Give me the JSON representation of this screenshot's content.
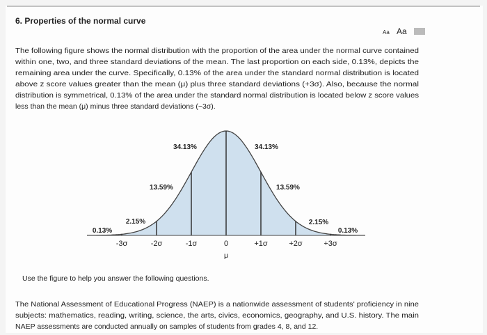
{
  "header": {
    "title": "6. Properties of the normal curve",
    "font_controls": [
      "Aa",
      "Aa"
    ]
  },
  "intro": {
    "lines": [
      "The following figure shows the normal distribution with the proportion of the area under the normal curve contained",
      "within one, two, and three standard deviations of the mean. The last proportion on each side, 0.13%, depicts the",
      "remaining area under the curve. Specifically, 0.13% of the area under the standard normal distribution is located",
      "above z score values greater than the mean (μ) plus three standard deviations (+3σ). Also, because the normal",
      "distribution is symmetrical, 0.13% of the area under the standard normal distribution is located below z score values",
      "less than the mean (μ) minus three standard deviations (−3σ)."
    ]
  },
  "figure": {
    "area_labels": [
      "0.13%",
      "2.15%",
      "13.59%",
      "34.13%",
      "34.13%",
      "13.59%",
      "2.15%",
      "0.13%"
    ],
    "axis_labels": [
      "-3σ",
      "-2σ",
      "-1σ",
      "0",
      "+1σ",
      "+2σ",
      "+3σ"
    ],
    "mean_label": "μ"
  },
  "prompt": "Use the figure to help you answer the following questions.",
  "passage": {
    "lines": [
      "The National Assessment of Educational Progress (NAEP) is a nationwide assessment of students' proficiency in nine",
      "subjects: mathematics, reading, writing, science, the arts, civics, economics, geography, and U.S. history. The main",
      "NAEP assessments are conducted annually on samples of students from grades 4, 8, and 12."
    ]
  }
}
